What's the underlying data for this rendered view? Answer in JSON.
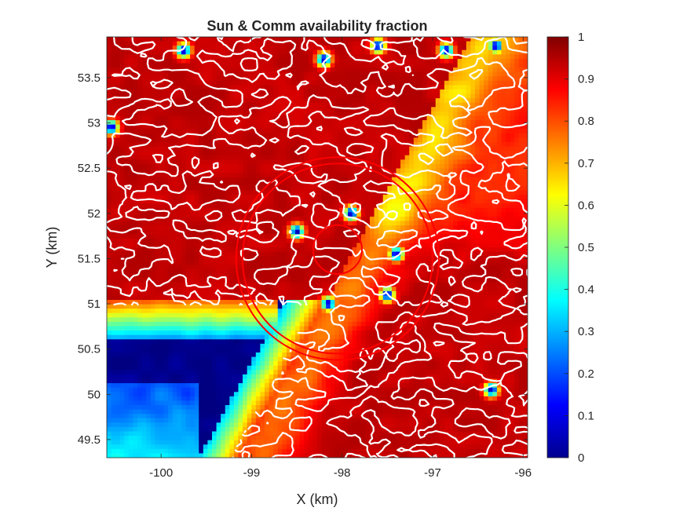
{
  "chart_data": {
    "type": "heatmap",
    "title": "Sun & Comm availability fraction",
    "xlabel": "X (km)",
    "ylabel": "Y (km)",
    "xlim": [
      -100.6,
      -95.95
    ],
    "ylim": [
      49.3,
      53.95
    ],
    "x_ticks": [
      -100,
      -99,
      -98,
      -97,
      -96
    ],
    "x_tick_labels": [
      "-100",
      "-99",
      "-98",
      "-97",
      "-96"
    ],
    "y_ticks": [
      49.5,
      50,
      50.5,
      51,
      51.5,
      52,
      52.5,
      53,
      53.5
    ],
    "y_tick_labels": [
      "49.5",
      "50",
      "50.5",
      "51",
      "51.5",
      "52",
      "52.5",
      "53",
      "53.5"
    ],
    "colorbar": {
      "colormap": "jet",
      "clim": [
        0,
        1
      ],
      "ticks": [
        0,
        0.1,
        0.2,
        0.3,
        0.4,
        0.5,
        0.6,
        0.7,
        0.8,
        0.9,
        1
      ],
      "tick_labels": [
        "0",
        "0.1",
        "0.2",
        "0.3",
        "0.4",
        "0.5",
        "0.6",
        "0.7",
        "0.8",
        "0.9",
        "1"
      ]
    },
    "regions": {
      "shadow_zone": {
        "approx_value": 0.0,
        "location": "lower-left, about x -100.6 to -98.4, y 49.6 to 50.6"
      },
      "gradient_band": {
        "approx_value_range": [
          0.3,
          0.8
        ],
        "location": "diagonal band from x -98.6 to -97.4"
      },
      "right_upper": {
        "approx_value_range": [
          0.7,
          0.95
        ],
        "location": "upper right, about x -97.5 to -96"
      },
      "elsewhere": {
        "approx_value": 0.95
      }
    },
    "contour_overlay": {
      "color": "#ffffff"
    },
    "circles": [
      {
        "color": "#ff0000",
        "center": [
          -98.05,
          51.5
        ],
        "radius_km": 1.05
      },
      {
        "color": "#ff0000",
        "center": [
          -98.05,
          51.5
        ],
        "radius_km": 1.12
      },
      {
        "color": "#ff0000",
        "center": [
          -98.05,
          51.6
        ],
        "radius_km": 0.27
      }
    ]
  }
}
